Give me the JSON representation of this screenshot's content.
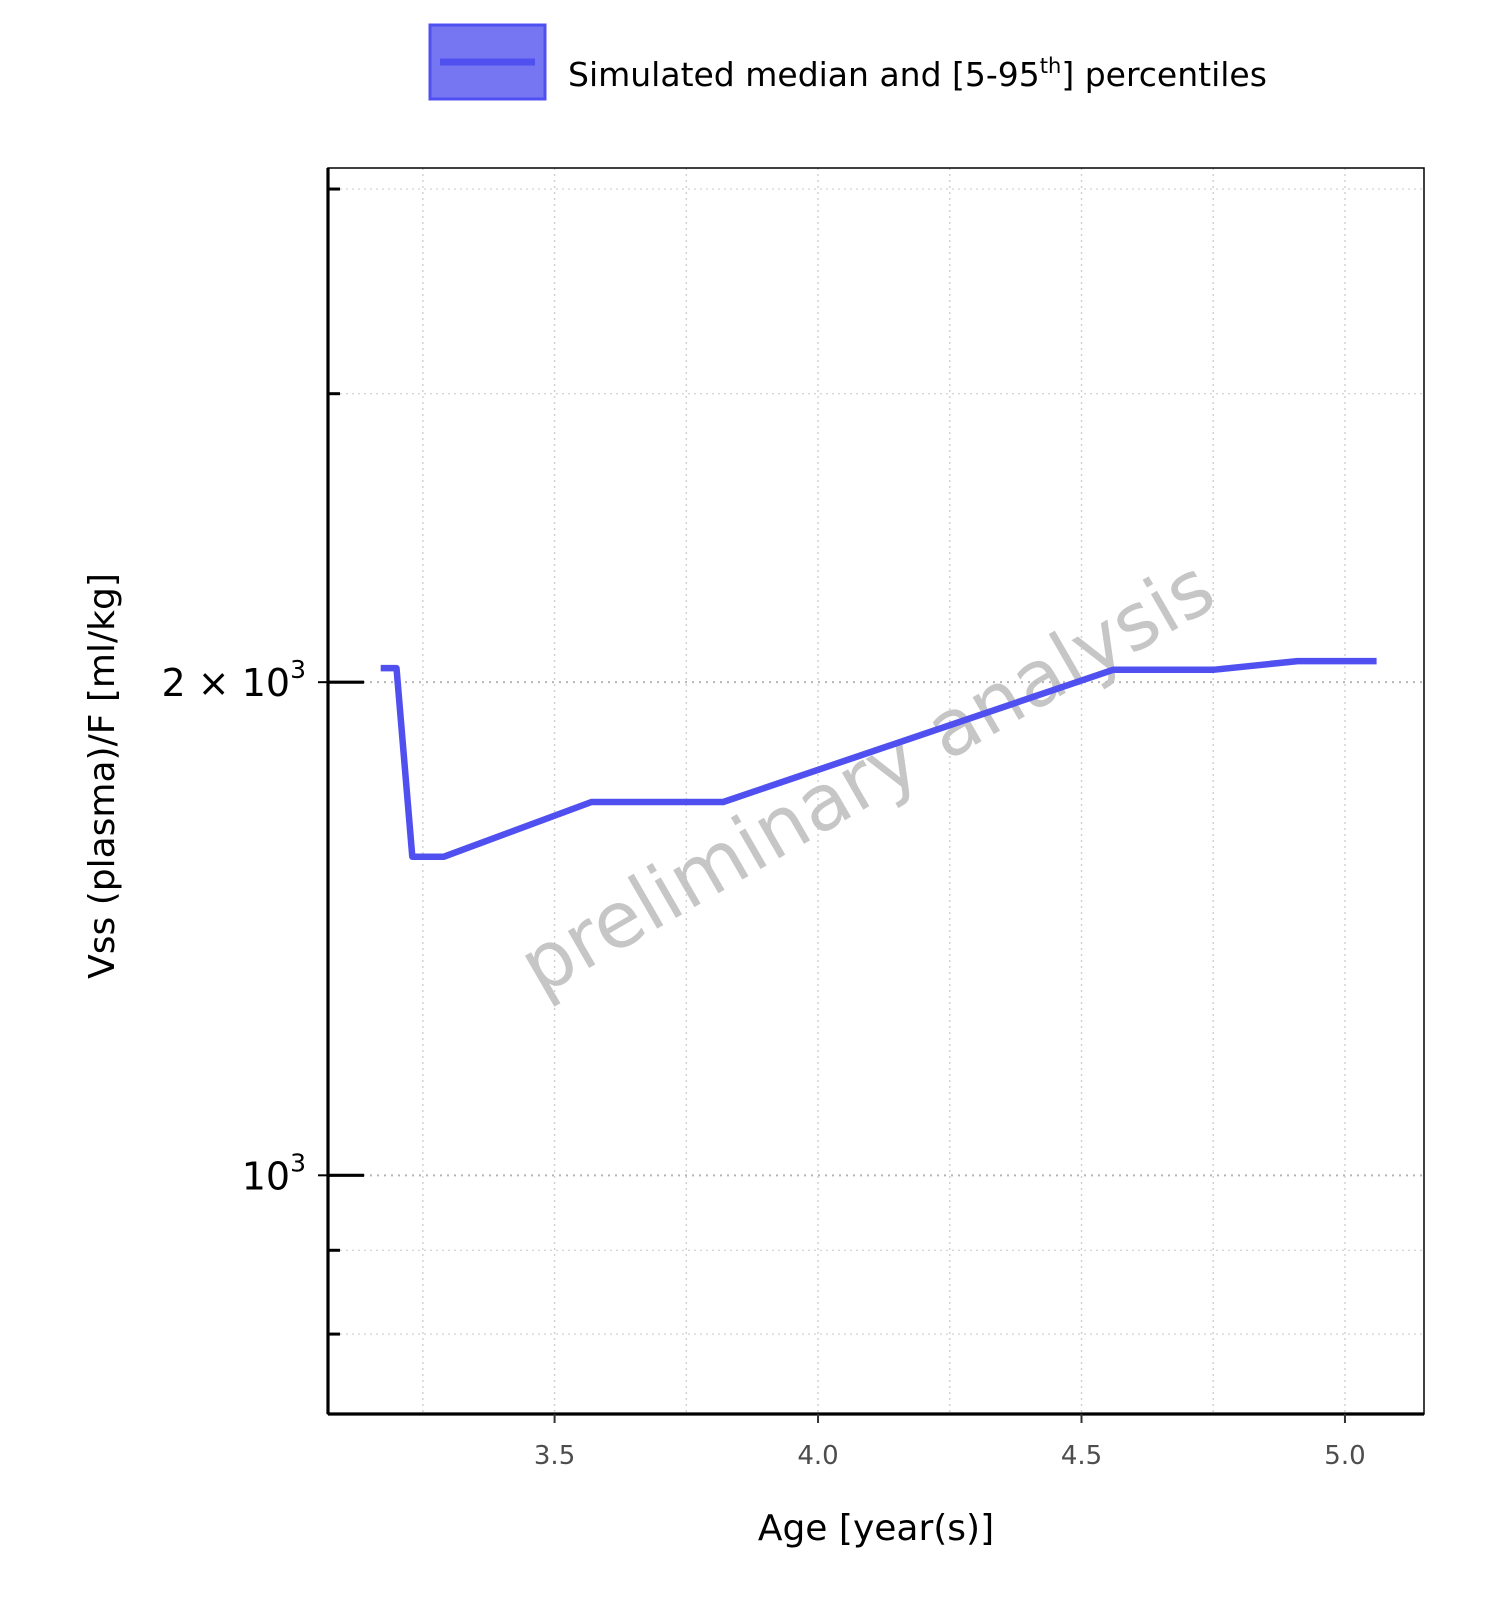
{
  "chart_data": {
    "type": "line",
    "xlabel": "Age [year(s)]",
    "ylabel": "Vss (plasma)/F [ml/kg]",
    "xlim": [
      3.07,
      5.15
    ],
    "ylim": [
      715,
      4120
    ],
    "y_scale": "log",
    "grid": true,
    "legend_position": "top",
    "x_ticks": [
      {
        "value": 3.5,
        "label": "3.5"
      },
      {
        "value": 4.0,
        "label": "4.0"
      },
      {
        "value": 4.5,
        "label": "4.5"
      },
      {
        "value": 5.0,
        "label": "5.0"
      }
    ],
    "x_minor_grid": [
      3.25,
      3.75,
      4.25,
      4.75
    ],
    "y_major_ticks": [
      {
        "value": 1000,
        "base": "10",
        "exp": "3"
      },
      {
        "value": 2000,
        "mantissa": "2 × ",
        "base": "10",
        "exp": "3"
      }
    ],
    "y_minor_ticks": [
      800,
      900,
      3000,
      4000
    ],
    "series": [
      {
        "name": "Simulated median and [5-95",
        "name_sup": "th",
        "name_suffix": "] percentiles",
        "color": "#5050f0",
        "x": [
          3.17,
          3.2,
          3.23,
          3.29,
          3.57,
          3.82,
          4.56,
          4.75,
          4.91,
          5.06
        ],
        "y": [
          2040,
          2040,
          1565,
          1565,
          1690,
          1690,
          2035,
          2035,
          2060,
          2060
        ]
      }
    ],
    "watermark": "preliminary analysis"
  }
}
